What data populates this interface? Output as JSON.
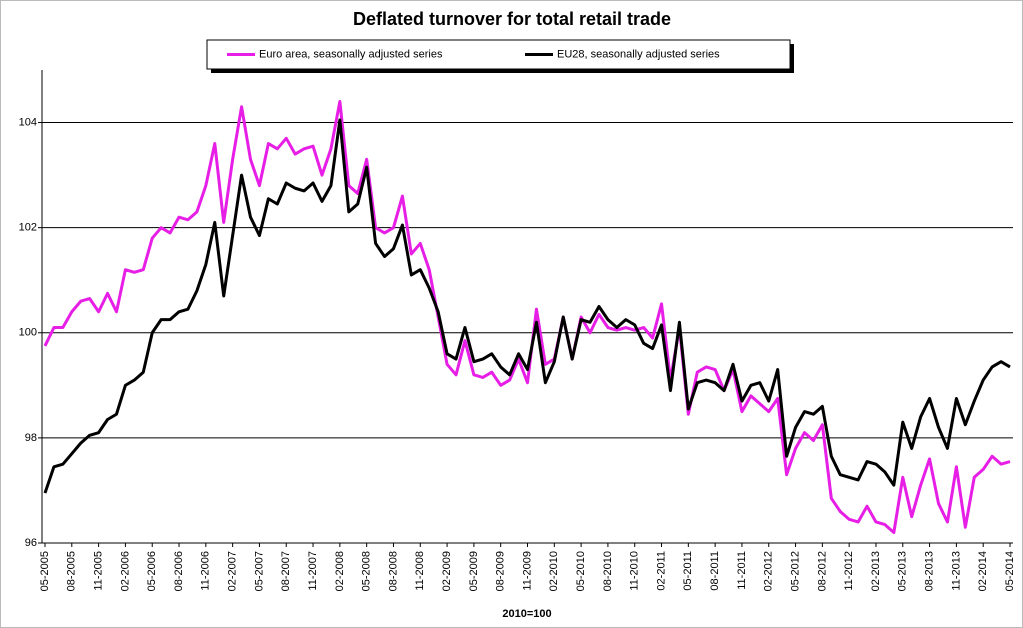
{
  "chart_data": {
    "type": "line",
    "title": "Deflated turnover for total retail trade",
    "x_label": "2010=100",
    "categories": [
      "05-2005",
      null,
      null,
      "08-2005",
      null,
      null,
      "11-2005",
      null,
      null,
      "02-2006",
      null,
      null,
      "05-2006",
      null,
      null,
      "08-2006",
      null,
      null,
      "11-2006",
      null,
      null,
      "02-2007",
      null,
      null,
      "05-2007",
      null,
      null,
      "08-2007",
      null,
      null,
      "11-2007",
      null,
      null,
      "02-2008",
      null,
      null,
      "05-2008",
      null,
      null,
      "08-2008",
      null,
      null,
      "11-2008",
      null,
      null,
      "02-2009",
      null,
      null,
      "05-2009",
      null,
      null,
      "08-2009",
      null,
      null,
      "11-2009",
      null,
      null,
      "02-2010",
      null,
      null,
      "05-2010",
      null,
      null,
      "08-2010",
      null,
      null,
      "11-2010",
      null,
      null,
      "02-2011",
      null,
      null,
      "05-2011",
      null,
      null,
      "08-2011",
      null,
      null,
      "11-2011",
      null,
      null,
      "02-2012",
      null,
      null,
      "05-2012",
      null,
      null,
      "08-2012",
      null,
      null,
      "11-2012",
      null,
      null,
      "02-2013",
      null,
      null,
      "05-2013",
      null,
      null,
      "08-2013",
      null,
      null,
      "11-2013",
      null,
      null,
      "02-2014",
      null,
      null,
      "05-2014"
    ],
    "series": [
      {
        "name": "Euro area, seasonally adjusted series",
        "color": "#e61ee6",
        "values": [
          99.75,
          100.1,
          100.1,
          100.4,
          100.6,
          100.65,
          100.4,
          100.75,
          100.4,
          101.2,
          101.15,
          101.2,
          101.8,
          102.0,
          101.9,
          102.2,
          102.15,
          102.3,
          102.8,
          103.6,
          102.1,
          103.3,
          104.3,
          103.3,
          102.8,
          103.6,
          103.5,
          103.7,
          103.4,
          103.5,
          103.55,
          103.0,
          103.5,
          104.4,
          102.8,
          102.65,
          103.3,
          102.0,
          101.9,
          102.0,
          102.6,
          101.5,
          101.7,
          101.2,
          100.3,
          99.4,
          99.2,
          99.85,
          99.2,
          99.15,
          99.25,
          99.0,
          99.1,
          99.5,
          99.05,
          100.45,
          99.4,
          99.5,
          100.3,
          99.5,
          100.3,
          100.0,
          100.35,
          100.1,
          100.05,
          100.1,
          100.05,
          100.1,
          99.9,
          100.55,
          99.1,
          100.1,
          98.45,
          99.25,
          99.35,
          99.3,
          98.9,
          99.3,
          98.5,
          98.8,
          98.65,
          98.5,
          98.75,
          97.3,
          97.8,
          98.1,
          97.95,
          98.25,
          96.85,
          96.6,
          96.45,
          96.4,
          96.7,
          96.4,
          96.35,
          96.2,
          97.25,
          96.5,
          97.1,
          97.6,
          96.75,
          96.4,
          97.45,
          96.3,
          97.25,
          97.4,
          97.65,
          97.5,
          97.55
        ]
      },
      {
        "name": "EU28, seasonally adjusted series",
        "color": "#000000",
        "values": [
          96.95,
          97.45,
          97.5,
          97.7,
          97.9,
          98.05,
          98.1,
          98.35,
          98.45,
          99.0,
          99.1,
          99.25,
          100.0,
          100.25,
          100.25,
          100.4,
          100.45,
          100.8,
          101.3,
          102.1,
          100.7,
          101.85,
          103.0,
          102.2,
          101.85,
          102.55,
          102.45,
          102.85,
          102.75,
          102.7,
          102.85,
          102.5,
          102.8,
          104.05,
          102.3,
          102.45,
          103.15,
          101.7,
          101.45,
          101.6,
          102.05,
          101.1,
          101.2,
          100.85,
          100.4,
          99.6,
          99.5,
          100.1,
          99.45,
          99.5,
          99.6,
          99.35,
          99.2,
          99.6,
          99.3,
          100.2,
          99.05,
          99.45,
          100.3,
          99.5,
          100.25,
          100.2,
          100.5,
          100.25,
          100.1,
          100.25,
          100.15,
          99.8,
          99.7,
          100.15,
          98.9,
          100.2,
          98.55,
          99.05,
          99.1,
          99.05,
          98.9,
          99.4,
          98.7,
          99.0,
          99.05,
          98.7,
          99.3,
          97.65,
          98.2,
          98.5,
          98.45,
          98.6,
          97.65,
          97.3,
          97.25,
          97.2,
          97.55,
          97.5,
          97.35,
          97.1,
          98.3,
          97.8,
          98.4,
          98.75,
          98.2,
          97.8,
          98.75,
          98.25,
          98.7,
          99.1,
          99.35,
          99.45,
          99.35
        ]
      }
    ],
    "ylim": [
      96,
      105
    ],
    "yticks": [
      96,
      98,
      100,
      102,
      104
    ],
    "grid": true,
    "legend": "top"
  }
}
